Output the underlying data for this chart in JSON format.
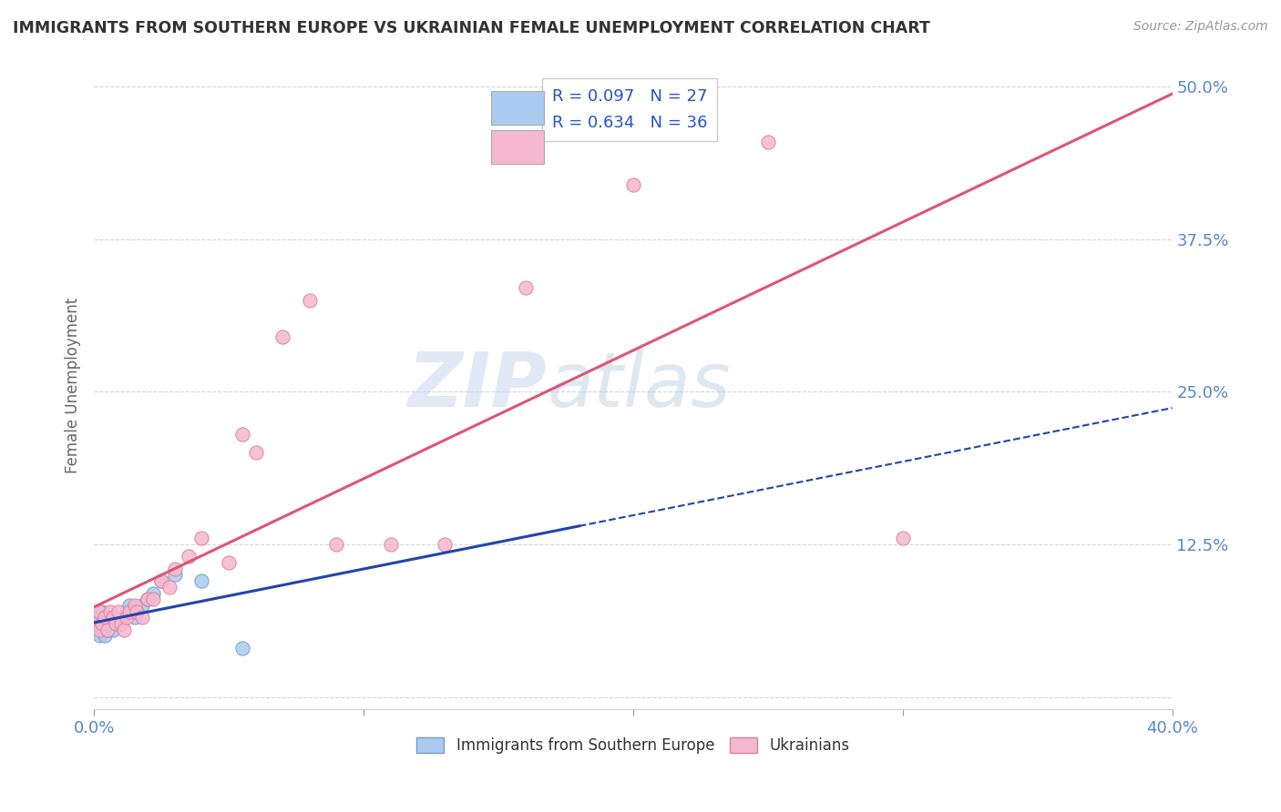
{
  "title": "IMMIGRANTS FROM SOUTHERN EUROPE VS UKRAINIAN FEMALE UNEMPLOYMENT CORRELATION CHART",
  "source": "Source: ZipAtlas.com",
  "ylabel": "Female Unemployment",
  "xlim": [
    0,
    0.4
  ],
  "ylim": [
    -0.01,
    0.52
  ],
  "xticks": [
    0.0,
    0.1,
    0.2,
    0.3,
    0.4
  ],
  "xticklabels": [
    "0.0%",
    "",
    "",
    "",
    "40.0%"
  ],
  "ytick_positions": [
    0.0,
    0.125,
    0.25,
    0.375,
    0.5
  ],
  "ytick_labels": [
    "",
    "12.5%",
    "25.0%",
    "37.5%",
    "50.0%"
  ],
  "series1_color": "#aaccf0",
  "series1_edge": "#7799cc",
  "series2_color": "#f5b8ce",
  "series2_edge": "#e080a0",
  "trendline1_color": "#2244aa",
  "trendline2_color": "#dd5577",
  "R1": 0.097,
  "N1": 27,
  "R2": 0.634,
  "N2": 36,
  "label1": "Immigrants from Southern Europe",
  "label2": "Ukrainians",
  "watermark_zip": "ZIP",
  "watermark_atlas": "atlas",
  "background_color": "#ffffff",
  "grid_color": "#bbbbbb",
  "title_color": "#333333",
  "axis_label_color": "#666666",
  "tick_label_color": "#5588cc",
  "series1_x": [
    0.001,
    0.001,
    0.002,
    0.002,
    0.003,
    0.003,
    0.004,
    0.004,
    0.005,
    0.005,
    0.006,
    0.007,
    0.008,
    0.009,
    0.01,
    0.011,
    0.012,
    0.013,
    0.015,
    0.016,
    0.018,
    0.02,
    0.022,
    0.025,
    0.03,
    0.04,
    0.055
  ],
  "series1_y": [
    0.055,
    0.065,
    0.05,
    0.06,
    0.055,
    0.07,
    0.05,
    0.06,
    0.055,
    0.065,
    0.06,
    0.055,
    0.06,
    0.06,
    0.06,
    0.065,
    0.07,
    0.075,
    0.065,
    0.07,
    0.075,
    0.08,
    0.085,
    0.095,
    0.1,
    0.095,
    0.04
  ],
  "series2_x": [
    0.001,
    0.002,
    0.002,
    0.003,
    0.004,
    0.005,
    0.006,
    0.007,
    0.008,
    0.009,
    0.01,
    0.011,
    0.012,
    0.013,
    0.015,
    0.016,
    0.018,
    0.02,
    0.022,
    0.025,
    0.028,
    0.03,
    0.035,
    0.04,
    0.05,
    0.055,
    0.06,
    0.07,
    0.08,
    0.09,
    0.11,
    0.13,
    0.16,
    0.2,
    0.25,
    0.3
  ],
  "series2_y": [
    0.06,
    0.055,
    0.07,
    0.06,
    0.065,
    0.055,
    0.07,
    0.065,
    0.06,
    0.07,
    0.06,
    0.055,
    0.065,
    0.07,
    0.075,
    0.07,
    0.065,
    0.08,
    0.08,
    0.095,
    0.09,
    0.105,
    0.115,
    0.13,
    0.11,
    0.215,
    0.2,
    0.295,
    0.325,
    0.125,
    0.125,
    0.125,
    0.335,
    0.42,
    0.455,
    0.13
  ],
  "trendline1_solid_end": 0.18,
  "trendline1_dash_start": 0.18,
  "trendline1_dash_end": 0.4
}
